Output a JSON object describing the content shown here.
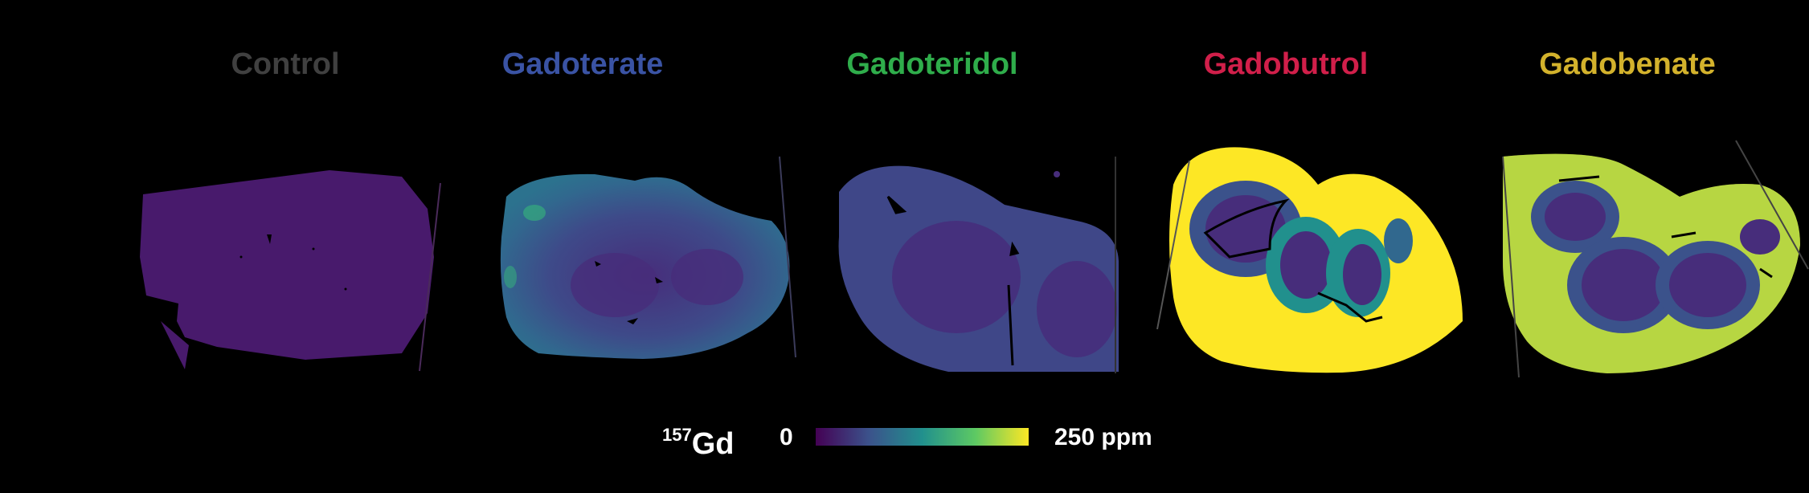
{
  "panels": [
    {
      "label": "Control",
      "color": "#404040"
    },
    {
      "label": "Gadoterate",
      "color": "#3a53a4"
    },
    {
      "label": "Gadoteridol",
      "color": "#2fad4b"
    },
    {
      "label": "Gadobutrol",
      "color": "#d11f4a"
    },
    {
      "label": "Gadobenate",
      "color": "#d3b22c"
    }
  ],
  "legend": {
    "isotope_mass": "157",
    "isotope_symbol": "Gd",
    "scale_min": "0",
    "scale_max": "250 ppm",
    "colormap": [
      "#440154",
      "#3b528b",
      "#21908d",
      "#5dc963",
      "#fde725"
    ]
  }
}
